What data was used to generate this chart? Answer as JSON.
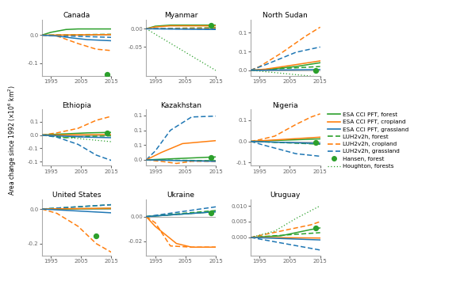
{
  "colors": {
    "green": "#2ca02c",
    "orange": "#ff7f0e",
    "blue": "#1f77b4"
  },
  "ylims": {
    "Canada": [
      -0.145,
      0.055
    ],
    "Myanmar": [
      -0.13,
      0.025
    ],
    "North Sudan": [
      -0.015,
      0.135
    ],
    "Ethiopia": [
      -0.115,
      0.095
    ],
    "Kazakhstan": [
      -0.02,
      0.17
    ],
    "Nigeria": [
      -0.115,
      0.15
    ],
    "United States": [
      -0.27,
      0.055
    ],
    "Ukraine": [
      -0.032,
      0.014
    ],
    "Uruguay": [
      -0.0058,
      0.012
    ]
  },
  "yticks": {
    "Canada": [
      0.0,
      -0.1
    ],
    "Myanmar": [
      0.0,
      -0.05
    ],
    "North Sudan": [
      0.0,
      0.05,
      0.1
    ],
    "Ethiopia": [
      -0.1,
      -0.05,
      0.0,
      0.05
    ],
    "Kazakhstan": [
      0.0,
      0.05,
      0.1,
      0.15
    ],
    "Nigeria": [
      -0.1,
      0.0,
      0.1
    ],
    "United States": [
      0.0,
      -0.2
    ],
    "Ukraine": [
      0.0,
      -0.02
    ],
    "Uruguay": [
      0.0,
      0.005,
      0.01
    ]
  }
}
